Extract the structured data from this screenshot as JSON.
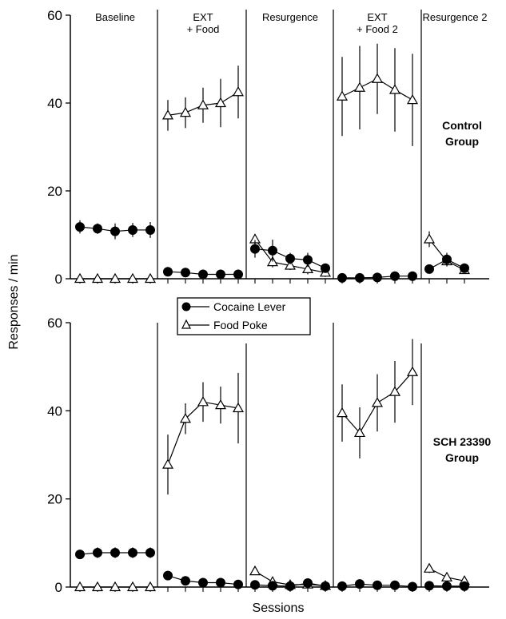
{
  "figure": {
    "ylabel": "Responses / min",
    "xlabel": "Sessions",
    "legend": {
      "items": [
        "Cocaine Lever",
        "Food Poke"
      ],
      "placement": "top-center of lower panel"
    }
  },
  "colors": {
    "lever": "#000000",
    "poke": "#ffffff",
    "stroke": "#000000"
  },
  "chart_data": [
    {
      "type": "line",
      "group_label": [
        "Control",
        "Group"
      ],
      "ylim": [
        0,
        60
      ],
      "yticks": [
        0,
        20,
        40,
        60
      ],
      "phases": [
        {
          "label": [
            "Baseline"
          ],
          "sessions": 5
        },
        {
          "label": [
            "EXT",
            "+ Food"
          ],
          "sessions": 5
        },
        {
          "label": [
            "Resurgence"
          ],
          "sessions": 5
        },
        {
          "label": [
            "EXT",
            "+ Food 2"
          ],
          "sessions": 5
        },
        {
          "label": [
            "Resurgence 2"
          ],
          "sessions": 3
        }
      ],
      "series": [
        {
          "name": "Cocaine Lever",
          "marker": "circle",
          "values": [
            [
              11.8,
              11.4,
              10.8,
              11.1,
              11.1
            ],
            [
              1.6,
              1.4,
              1.0,
              1.0,
              1.0
            ],
            [
              6.8,
              6.4,
              4.6,
              4.3,
              2.4
            ],
            [
              0.2,
              0.2,
              0.3,
              0.6,
              0.6
            ],
            [
              2.2,
              4.4,
              2.4
            ]
          ],
          "errors": [
            [
              1.5,
              1.2,
              1.8,
              1.6,
              1.8
            ],
            [
              0.8,
              0.6,
              0.5,
              0.5,
              0.5
            ],
            [
              2.0,
              2.5,
              1.3,
              1.6,
              1.0
            ],
            [
              0.3,
              0.3,
              0.3,
              0.4,
              0.4
            ],
            [
              0.8,
              1.5,
              0.8
            ]
          ]
        },
        {
          "name": "Food Poke",
          "marker": "triangle",
          "values": [
            [
              0,
              0,
              0,
              0,
              0
            ],
            [
              37.2,
              37.8,
              39.5,
              40.0,
              42.5
            ],
            [
              9.0,
              3.8,
              3.0,
              2.2,
              1.4
            ],
            [
              41.5,
              43.5,
              45.5,
              43.0,
              40.7
            ],
            [
              9.0,
              4.0,
              2.0
            ]
          ],
          "errors": [
            [
              0,
              0,
              0,
              0,
              0
            ],
            [
              3.5,
              3.5,
              4.0,
              5.5,
              6.0
            ],
            [
              1.2,
              1.2,
              1.0,
              1.2,
              1.0
            ],
            [
              9.0,
              9.5,
              8.0,
              9.5,
              10.5
            ],
            [
              1.8,
              1.2,
              0.8
            ]
          ]
        }
      ]
    },
    {
      "type": "line",
      "group_label": [
        "SCH 23390",
        "Group"
      ],
      "ylim": [
        0,
        60
      ],
      "yticks": [
        0,
        20,
        40,
        60
      ],
      "phases": [
        {
          "label": [],
          "sessions": 5
        },
        {
          "label": [],
          "sessions": 5
        },
        {
          "label": [],
          "sessions": 5
        },
        {
          "label": [],
          "sessions": 5
        },
        {
          "label": [],
          "sessions": 3
        }
      ],
      "series": [
        {
          "name": "Cocaine Lever",
          "marker": "circle",
          "values": [
            [
              7.4,
              7.8,
              7.8,
              7.8,
              7.8
            ],
            [
              2.6,
              1.4,
              1.0,
              1.0,
              0.6
            ],
            [
              0.5,
              0.3,
              0.2,
              0.9,
              0.2
            ],
            [
              0.2,
              0.7,
              0.4,
              0.4,
              0.1
            ],
            [
              0.3,
              0.2,
              0.2
            ]
          ],
          "errors": [
            [
              1.0,
              1.2,
              1.2,
              1.2,
              1.2
            ],
            [
              0.5,
              0.5,
              0.4,
              0.4,
              0.4
            ],
            [
              0.4,
              0.3,
              0.3,
              0.4,
              0.3
            ],
            [
              0.3,
              0.4,
              0.3,
              0.3,
              0.2
            ],
            [
              0.3,
              0.2,
              0.2
            ]
          ]
        },
        {
          "name": "Food Poke",
          "marker": "triangle",
          "values": [
            [
              0,
              0,
              0,
              0,
              0
            ],
            [
              27.8,
              38.2,
              42.0,
              41.3,
              40.6
            ],
            [
              3.6,
              1.2,
              0.5,
              0.6,
              0.3
            ],
            [
              39.5,
              35.0,
              41.8,
              44.3,
              48.8
            ],
            [
              4.2,
              2.2,
              1.4
            ]
          ],
          "errors": [
            [
              0,
              0,
              0,
              0,
              0
            ],
            [
              6.8,
              3.5,
              4.5,
              4.2,
              8.0
            ],
            [
              0.8,
              0.6,
              0.4,
              0.4,
              0.3
            ],
            [
              6.5,
              5.8,
              6.5,
              7.0,
              7.5
            ],
            [
              1.0,
              0.6,
              0.4
            ]
          ]
        }
      ]
    }
  ]
}
